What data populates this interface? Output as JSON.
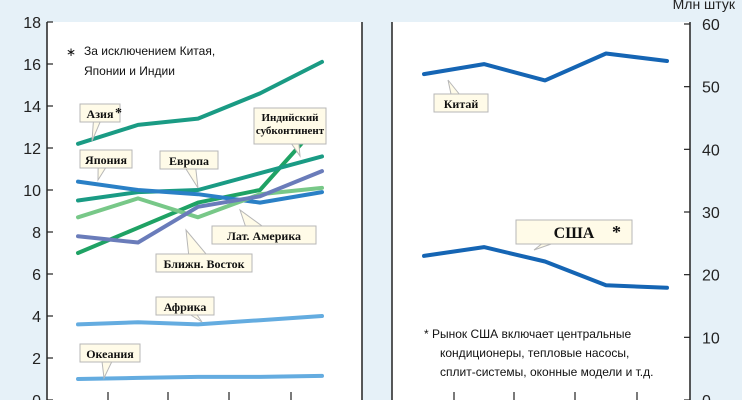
{
  "chart_data": [
    {
      "type": "line",
      "title": "",
      "ylim": [
        0,
        18
      ],
      "y_ticks": [
        "0",
        "2",
        "4",
        "6",
        "8",
        "10",
        "12",
        "14",
        "16",
        "18"
      ],
      "x": [
        1,
        2,
        3,
        4,
        5
      ],
      "note": "За исключением Китая, Японии и Индии",
      "note_lines": [
        "За исключением Китая,",
        "Японии и Индии"
      ],
      "series": [
        {
          "name": "Азия*",
          "label_text": "Азия",
          "star": "*",
          "color": "#1a9b84",
          "values": [
            12.2,
            13.1,
            13.4,
            14.6,
            16.1
          ]
        },
        {
          "name": "Индийский субконтинент",
          "label_lines": [
            "Индийский",
            "субконтинент"
          ],
          "color": "#1fa264",
          "values": [
            7.0,
            8.2,
            9.4,
            10.0,
            13.3
          ]
        },
        {
          "name": "Европа",
          "color": "#1a9b84",
          "values": [
            9.5,
            9.9,
            10.0,
            10.8,
            11.6
          ]
        },
        {
          "name": "Япония",
          "color": "#2a80c6",
          "values": [
            10.4,
            10.0,
            9.8,
            9.4,
            9.9
          ]
        },
        {
          "name": "Лат. Америка",
          "color": "#78c888",
          "values": [
            8.7,
            9.6,
            8.7,
            9.8,
            10.1
          ]
        },
        {
          "name": "Ближн. Восток",
          "color": "#6a7cba",
          "values": [
            7.8,
            7.5,
            9.2,
            9.7,
            10.9
          ]
        },
        {
          "name": "Африка",
          "color": "#64ace0",
          "values": [
            3.6,
            3.7,
            3.6,
            3.8,
            4.0
          ]
        },
        {
          "name": "Океания",
          "color": "#64ace0",
          "values": [
            1.0,
            1.05,
            1.1,
            1.1,
            1.15
          ]
        }
      ]
    },
    {
      "type": "line",
      "title": "",
      "ylabel": "Млн штук",
      "ylim": [
        0,
        60
      ],
      "y_ticks": [
        "0",
        "10",
        "20",
        "30",
        "40",
        "50",
        "60"
      ],
      "x": [
        1,
        2,
        3,
        4,
        5
      ],
      "note": "* Рынок США включает центральные кондиционеры, тепловые насосы, сплит-системы, оконные модели и т.д.",
      "note_lines": [
        "*  Рынок США включает центральные",
        "кондиционеры, тепловые насосы,",
        "сплит-системы, оконные модели и т.д."
      ],
      "series": [
        {
          "name": "Китай",
          "color": "#1565b4",
          "values": [
            52.0,
            53.6,
            51.0,
            55.3,
            54.1
          ]
        },
        {
          "name": "США*",
          "label_text": "США",
          "star": "*",
          "color": "#1565b4",
          "values": [
            23.0,
            24.4,
            22.1,
            18.3,
            17.9
          ]
        }
      ]
    }
  ]
}
